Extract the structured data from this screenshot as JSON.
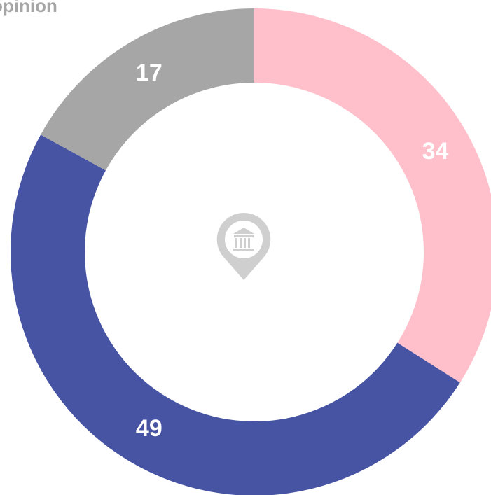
{
  "chart_data": {
    "type": "donut",
    "categories": [
      null,
      null,
      "opinion"
    ],
    "values": [
      34,
      49,
      17
    ],
    "colors": [
      "#ffc0cb",
      "#4754a3",
      "#a6a6a6"
    ]
  }
}
